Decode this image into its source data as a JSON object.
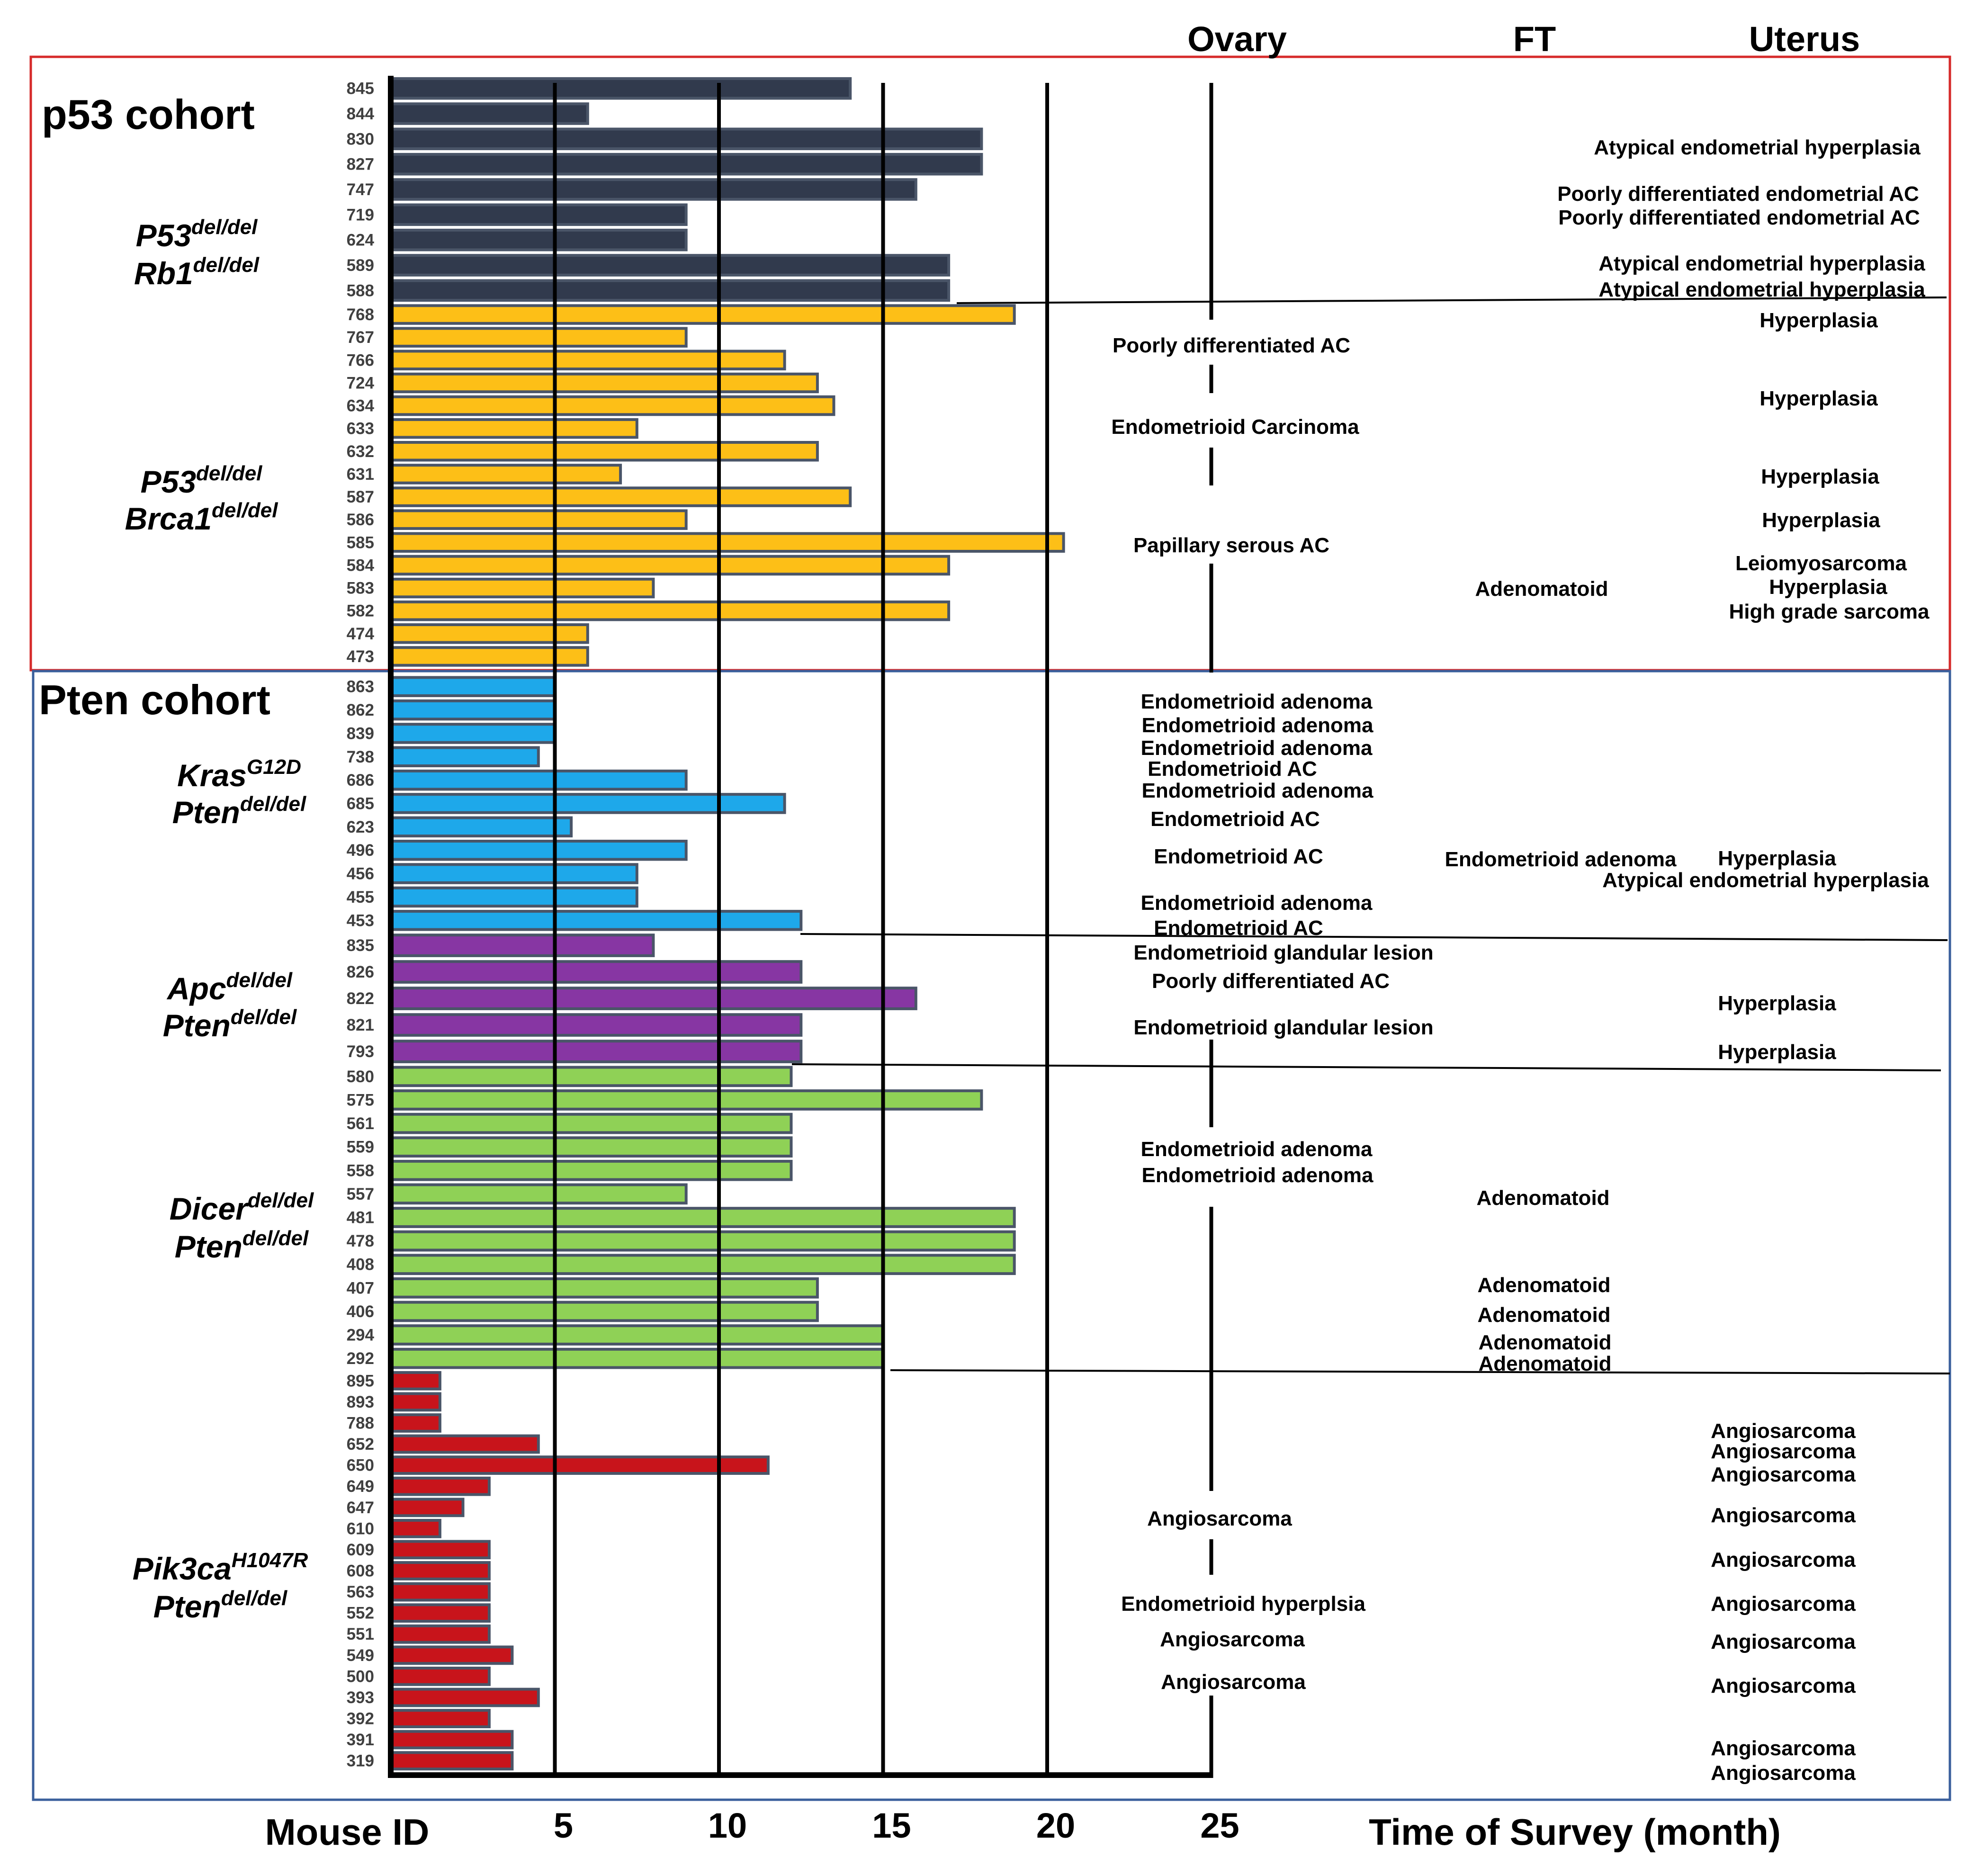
{
  "chart_data": {
    "type": "bar",
    "orientation": "horizontal",
    "xlabel": "Time of Survey (month)",
    "ylabel": "Mouse ID",
    "xlim": [
      0,
      25
    ],
    "xticks": [
      5,
      10,
      15,
      20,
      25
    ],
    "column_headers": {
      "ovary": "Ovary",
      "ft": "FT",
      "uterus": "Uterus"
    },
    "cohorts": [
      {
        "name": "p53 cohort",
        "border_color": "#d62a2a"
      },
      {
        "name": "Pten cohort",
        "border_color": "#3a5f9c"
      }
    ],
    "groups": [
      {
        "cohort": "p53 cohort",
        "line1": "P53",
        "sup1": "del/del",
        "line2": "Rb1",
        "sup2": "del/del",
        "color": "#313a4d",
        "ids": [
          "845",
          "844",
          "830",
          "827",
          "747",
          "719",
          "624",
          "589",
          "588"
        ],
        "values": [
          14,
          6,
          18,
          18,
          16,
          9,
          9,
          17,
          17
        ]
      },
      {
        "cohort": "p53 cohort",
        "line1": "P53",
        "sup1": "del/del",
        "line2": "Brca1",
        "sup2": "del/del",
        "color": "#fdbf17",
        "ids": [
          "768",
          "767",
          "766",
          "724",
          "634",
          "633",
          "632",
          "631",
          "587",
          "586",
          "585",
          "584",
          "583",
          "582",
          "474",
          "473"
        ],
        "values": [
          19,
          9,
          12,
          13,
          13.5,
          7.5,
          13,
          7,
          14,
          9,
          20.5,
          17,
          8,
          17,
          6,
          6
        ]
      },
      {
        "cohort": "Pten cohort",
        "line1": "Kras",
        "sup1": "G12D",
        "line2": "Pten",
        "sup2": "del/del",
        "color": "#1ea8ea",
        "ids": [
          "863",
          "862",
          "839",
          "738",
          "686",
          "685",
          "623",
          "496",
          "456",
          "455",
          "453"
        ],
        "values": [
          5,
          5,
          5,
          4.5,
          9,
          12,
          5.5,
          9,
          7.5,
          7.5,
          12.5
        ]
      },
      {
        "cohort": "Pten cohort",
        "line1": "Apc",
        "sup1": "del/del",
        "line2": "Pten",
        "sup2": "del/del",
        "color": "#8736a3",
        "ids": [
          "835",
          "826",
          "822",
          "821",
          "793"
        ],
        "values": [
          8,
          12.5,
          16,
          12.5,
          12.5
        ]
      },
      {
        "cohort": "Pten cohort",
        "line1": "Dicer",
        "sup1": "del/del",
        "line2": "Pten",
        "sup2": "del/del",
        "color": "#8fd156",
        "ids": [
          "580",
          "575",
          "561",
          "559",
          "558",
          "557",
          "481",
          "478",
          "408",
          "407",
          "406",
          "294",
          "292"
        ],
        "values": [
          12.2,
          18,
          12.2,
          12.2,
          12.2,
          9,
          19,
          19,
          19,
          13,
          13,
          15,
          15
        ]
      },
      {
        "cohort": "Pten cohort",
        "line1": "Pik3ca",
        "sup1": "H1047R",
        "line2": "Pten",
        "sup2": "del/del",
        "color": "#c8141b",
        "ids": [
          "895",
          "893",
          "788",
          "652",
          "650",
          "649",
          "647",
          "610",
          "609",
          "608",
          "563",
          "552",
          "551",
          "549",
          "500",
          "393",
          "392",
          "391",
          "319"
        ],
        "values": [
          1.5,
          1.5,
          1.5,
          4.5,
          11.5,
          3,
          2.2,
          1.5,
          3,
          3,
          3,
          3,
          3,
          3.7,
          3,
          4.5,
          3,
          3.7,
          3.7
        ]
      }
    ],
    "annotations": {
      "ovary": [
        "Poorly differentiated AC",
        "Endometrioid Carcinoma",
        "Papillary serous AC",
        "Endometrioid adenoma",
        "Endometrioid adenoma",
        "Endometrioid adenoma",
        "Endometrioid AC",
        "Endometrioid adenoma",
        "Endometrioid AC",
        "Endometrioid AC",
        "Endometrioid adenoma",
        "Endometrioid AC",
        "Endometrioid glandular lesion",
        "Poorly differentiated AC",
        "Endometrioid glandular lesion",
        "Endometrioid adenoma",
        "Endometrioid adenoma",
        "Angiosarcoma",
        "Endometrioid hyperplsia",
        "Angiosarcoma",
        "Angiosarcoma"
      ],
      "ft": [
        "Adenomatoid",
        "Endometrioid adenoma",
        "Adenomatoid",
        "Adenomatoid",
        "Adenomatoid",
        "Adenomatoid",
        "Adenomatoid"
      ],
      "uterus": [
        "Atypical endometrial hyperplasia",
        "Poorly differentiated endometrial AC",
        "Poorly differentiated endometrial AC",
        "Atypical endometrial hyperplasia",
        "Atypical endometrial hyperplasia",
        "Hyperplasia",
        "Hyperplasia",
        "Hyperplasia",
        "Hyperplasia",
        "Leiomyosarcoma",
        "Hyperplasia",
        "High grade sarcoma",
        "Hyperplasia",
        "Atypical endometrial hyperplasia",
        "Hyperplasia",
        "Hyperplasia",
        "Angiosarcoma",
        "Angiosarcoma",
        "Angiosarcoma",
        "Angiosarcoma",
        "Angiosarcoma",
        "Angiosarcoma",
        "Angiosarcoma",
        "Angiosarcoma",
        "Angiosarcoma",
        "Angiosarcoma"
      ]
    }
  }
}
